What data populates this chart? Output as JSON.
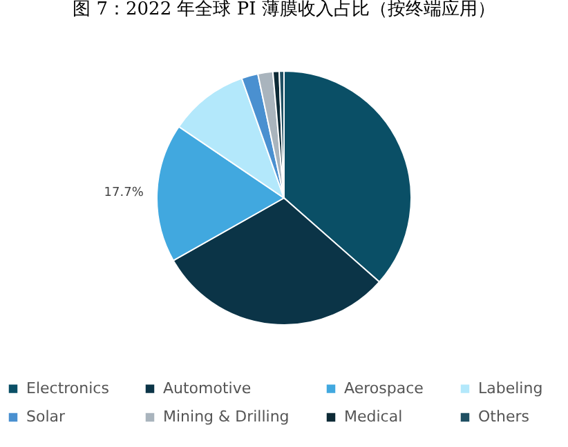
{
  "chart_data": {
    "type": "pie",
    "title": "图 7：2022 年全球 PI 薄膜收入占比（按终端应用）",
    "categories": [
      "Electronics",
      "Automotive",
      "Aerospace",
      "Labeling",
      "Solar",
      "Mining & Drilling",
      "Medical",
      "Others"
    ],
    "values": [
      36.5,
      30.3,
      17.7,
      10.1,
      2.1,
      1.9,
      0.8,
      0.6
    ],
    "colors": [
      "#0a4f66",
      "#0b3447",
      "#41a8df",
      "#b3e8fb",
      "#4a90d0",
      "#a9b4bd",
      "#0d2a36",
      "#1f4f62"
    ],
    "value_labels": [
      null,
      null,
      "17.7%",
      null,
      null,
      null,
      null,
      null
    ],
    "legend": "bottom"
  }
}
